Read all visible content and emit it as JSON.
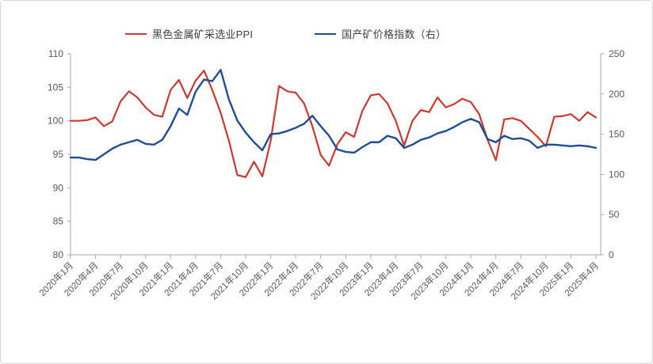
{
  "chart": {
    "legend": {
      "items": [
        {
          "label": "黑色金属矿采选业PPI",
          "color": "#d0382f"
        },
        {
          "label": "国产矿价格指数（右）",
          "color": "#1f4e97"
        }
      ]
    },
    "left_axis_ticks": [
      "80",
      "85",
      "90",
      "95",
      "100",
      "105",
      "110"
    ],
    "right_axis_ticks": [
      "0",
      "50",
      "100",
      "150",
      "200",
      "250"
    ],
    "x_tick_labels": [
      "2020年1月",
      "2020年4月",
      "2020年7月",
      "2020年10月",
      "2021年1月",
      "2021年4月",
      "2021年7月",
      "2021年10月",
      "2022年1月",
      "2022年4月",
      "2022年7月",
      "2022年10月",
      "2023年1月",
      "2023年4月",
      "2023年7月",
      "2023年10月",
      "2024年1月",
      "2024年4月",
      "2024年7月",
      "2024年10月",
      "2025年1月",
      "2025年4月"
    ],
    "colors": {
      "axis": "#a9a9a9",
      "tick_label": "#595959",
      "border": "#d7d7d7",
      "background": "#ffffff"
    }
  },
  "chart_data": {
    "type": "line",
    "title": "",
    "xlabel": "",
    "ylabel_left": "",
    "ylabel_right": "",
    "grid": false,
    "legend_position": "top",
    "left_ylim": [
      80,
      110
    ],
    "left_ytick_step": 5,
    "right_ylim": [
      0,
      250
    ],
    "right_ytick_step": 50,
    "x_tick_every": 3,
    "x": [
      "2020年1月",
      "2020年2月",
      "2020年3月",
      "2020年4月",
      "2020年5月",
      "2020年6月",
      "2020年7月",
      "2020年8月",
      "2020年9月",
      "2020年10月",
      "2020年11月",
      "2020年12月",
      "2021年1月",
      "2021年2月",
      "2021年3月",
      "2021年4月",
      "2021年5月",
      "2021年6月",
      "2021年7月",
      "2021年8月",
      "2021年9月",
      "2021年10月",
      "2021年11月",
      "2021年12月",
      "2022年1月",
      "2022年2月",
      "2022年3月",
      "2022年4月",
      "2022年5月",
      "2022年6月",
      "2022年7月",
      "2022年8月",
      "2022年9月",
      "2022年10月",
      "2022年11月",
      "2022年12月",
      "2023年1月",
      "2023年2月",
      "2023年3月",
      "2023年4月",
      "2023年5月",
      "2023年6月",
      "2023年7月",
      "2023年8月",
      "2023年9月",
      "2023年10月",
      "2023年11月",
      "2023年12月",
      "2024年1月",
      "2024年2月",
      "2024年3月",
      "2024年4月",
      "2024年5月",
      "2024年6月",
      "2024年7月",
      "2024年8月",
      "2024年9月",
      "2024年10月",
      "2024年11月",
      "2024年12月",
      "2025年1月",
      "2025年2月",
      "2025年3月",
      "2025年4月"
    ],
    "series": [
      {
        "name": "黑色金属矿采选业PPI",
        "axis": "left",
        "color": "#d0382f",
        "stroke_width": 2.2,
        "values": [
          100.0,
          100.0,
          100.1,
          100.5,
          99.2,
          99.9,
          102.9,
          104.4,
          103.5,
          102.0,
          100.9,
          100.6,
          104.6,
          106.1,
          103.4,
          106.0,
          107.5,
          104.6,
          101.2,
          97.0,
          91.9,
          91.6,
          93.9,
          91.7,
          97.0,
          105.2,
          104.4,
          104.2,
          102.6,
          99.2,
          94.9,
          93.3,
          96.5,
          98.3,
          97.6,
          101.5,
          103.8,
          104.0,
          102.6,
          100.0,
          96.3,
          100.0,
          101.6,
          101.3,
          103.5,
          102.0,
          102.5,
          103.3,
          102.8,
          101.0,
          97.2,
          94.1,
          100.2,
          100.4,
          100.0,
          98.8,
          97.6,
          96.2,
          100.6,
          100.7,
          101.0,
          100.0,
          101.3,
          100.5
        ]
      },
      {
        "name": "国产矿价格指数（右）",
        "axis": "right",
        "color": "#1f4e97",
        "stroke_width": 2.4,
        "values": [
          121,
          121,
          119,
          118,
          125,
          132,
          137,
          140,
          143,
          138,
          137,
          143,
          160,
          182,
          174,
          203,
          218,
          216,
          230,
          193,
          167,
          152,
          140,
          130,
          150,
          151,
          154,
          158,
          163,
          173,
          160,
          148,
          131,
          128,
          127,
          134,
          140,
          140,
          148,
          145,
          133,
          137,
          143,
          146,
          151,
          154,
          159,
          165,
          169,
          165,
          144,
          140,
          148,
          144,
          145,
          142,
          133,
          137,
          137,
          136,
          135,
          136,
          135,
          133
        ]
      }
    ]
  }
}
